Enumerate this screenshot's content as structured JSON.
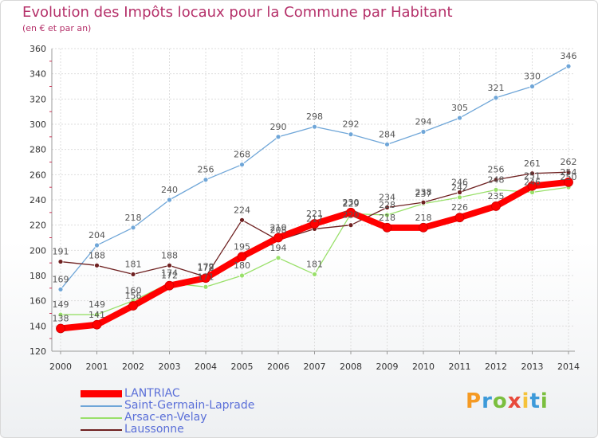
{
  "chart_data": {
    "type": "line",
    "title": "Evolution des Impôts locaux pour la Commune par Habitant",
    "subtitle": "(en € et par an)",
    "categories": [
      "2000",
      "2001",
      "2002",
      "2003",
      "2004",
      "2005",
      "2006",
      "2007",
      "2008",
      "2009",
      "2010",
      "2011",
      "2012",
      "2013",
      "2014"
    ],
    "ylim": [
      120,
      360
    ],
    "yticks": [
      "120",
      "140",
      "160",
      "180",
      "200",
      "220",
      "240",
      "260",
      "280",
      "300",
      "320",
      "340",
      "360"
    ],
    "grid": true,
    "legend_position": "bottom-left",
    "series": [
      {
        "name": "LANTRIAC",
        "color": "#ff0000",
        "values": [
          138,
          141,
          156,
          172,
          178,
          195,
          210,
          221,
          230,
          218,
          218,
          226,
          235,
          251,
          254
        ]
      },
      {
        "name": "Saint-Germain-Laprade",
        "color": "#6fa6d8",
        "values": [
          169,
          204,
          218,
          240,
          256,
          268,
          290,
          298,
          292,
          284,
          294,
          305,
          321,
          330,
          346
        ]
      },
      {
        "name": "Arsac-en-Velay",
        "color": "#99e06a",
        "values": [
          149,
          149,
          160,
          174,
          171,
          180,
          194,
          181,
          229,
          228,
          237,
          242,
          248,
          246,
          250
        ]
      },
      {
        "name": "Laussonne",
        "color": "#6e2020",
        "values": [
          191,
          188,
          181,
          188,
          179,
          224,
          208,
          217,
          220,
          234,
          238,
          246,
          256,
          261,
          262
        ]
      }
    ]
  },
  "logo": {
    "text": "Proxiti"
  }
}
